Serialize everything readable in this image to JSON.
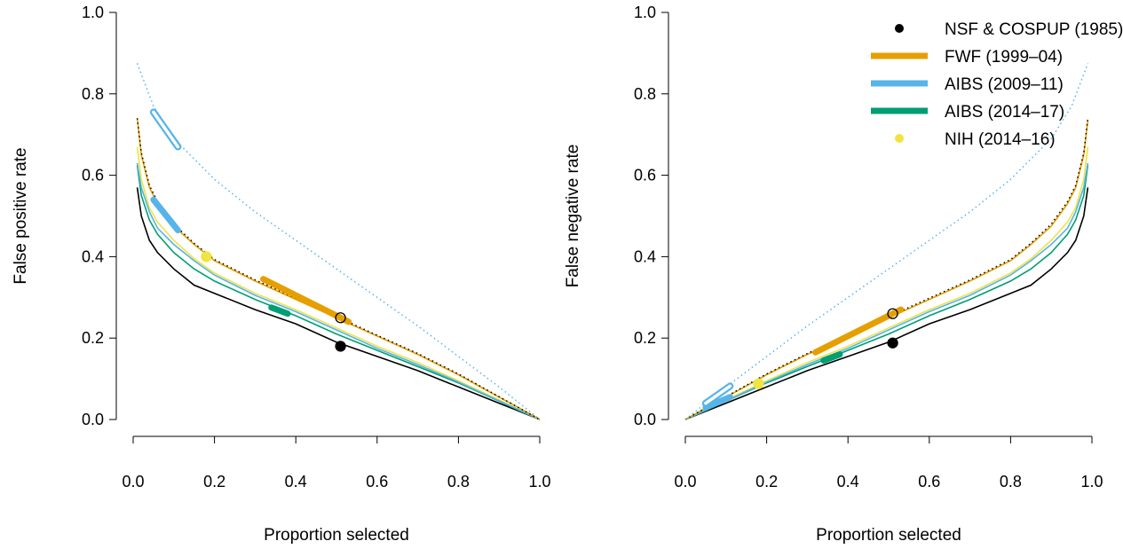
{
  "chart_data": [
    {
      "type": "line",
      "panel": "left",
      "xlabel": "Proportion selected",
      "ylabel": "False positive rate",
      "xlim": [
        0,
        1
      ],
      "ylim": [
        0,
        1
      ],
      "x_ticks": [
        "0.0",
        "0.2",
        "0.4",
        "0.6",
        "0.8",
        "1.0"
      ],
      "y_ticks": [
        "0.0",
        "0.2",
        "0.4",
        "0.6",
        "0.8",
        "1.0"
      ],
      "grid": false,
      "series": [
        {
          "name": "NSF & COSPUP (1985)",
          "color": "#000000",
          "x": [
            0.01,
            0.02,
            0.04,
            0.06,
            0.1,
            0.15,
            0.2,
            0.3,
            0.4,
            0.5,
            0.6,
            0.7,
            0.8,
            0.9,
            0.95,
            1.0
          ],
          "y": [
            0.57,
            0.5,
            0.44,
            0.41,
            0.37,
            0.33,
            0.31,
            0.27,
            0.235,
            0.19,
            0.155,
            0.12,
            0.08,
            0.04,
            0.02,
            0.0
          ]
        },
        {
          "name": "AIBS (2014–17)",
          "color": "#009E73",
          "x": [
            0.01,
            0.02,
            0.04,
            0.06,
            0.1,
            0.15,
            0.2,
            0.3,
            0.4,
            0.5,
            0.6,
            0.7,
            0.8,
            0.9,
            0.95,
            1.0
          ],
          "y": [
            0.625,
            0.55,
            0.49,
            0.455,
            0.41,
            0.37,
            0.34,
            0.295,
            0.255,
            0.21,
            0.17,
            0.13,
            0.09,
            0.045,
            0.022,
            0.0
          ]
        },
        {
          "name": "NIH (2014–16)",
          "color": "#F0E442",
          "x": [
            0.01,
            0.02,
            0.04,
            0.06,
            0.1,
            0.15,
            0.2,
            0.3,
            0.4,
            0.5,
            0.6,
            0.7,
            0.8,
            0.9,
            0.95,
            1.0
          ],
          "y": [
            0.67,
            0.59,
            0.52,
            0.485,
            0.44,
            0.395,
            0.36,
            0.31,
            0.27,
            0.225,
            0.18,
            0.14,
            0.095,
            0.048,
            0.024,
            0.0
          ]
        },
        {
          "name": "AIBS (2009–11)",
          "color": "#56B4E9",
          "x": [
            0.01,
            0.02,
            0.04,
            0.06,
            0.1,
            0.15,
            0.2,
            0.3,
            0.4,
            0.5,
            0.6,
            0.7,
            0.8,
            0.9,
            0.95,
            1.0
          ],
          "y": [
            0.63,
            0.57,
            0.51,
            0.47,
            0.43,
            0.39,
            0.355,
            0.305,
            0.265,
            0.22,
            0.175,
            0.135,
            0.092,
            0.046,
            0.023,
            0.0
          ]
        },
        {
          "name": "FWF (1999–04)",
          "color": "#E69F00",
          "x": [
            0.01,
            0.02,
            0.04,
            0.06,
            0.1,
            0.15,
            0.2,
            0.3,
            0.4,
            0.5,
            0.6,
            0.7,
            0.8,
            0.9,
            0.95,
            1.0
          ],
          "y": [
            0.74,
            0.65,
            0.57,
            0.53,
            0.475,
            0.43,
            0.39,
            0.34,
            0.295,
            0.25,
            0.205,
            0.16,
            0.11,
            0.055,
            0.028,
            0.0
          ]
        },
        {
          "name": "",
          "color": "#000000",
          "dash": "dotted",
          "x": [
            0.01,
            0.02,
            0.04,
            0.06,
            0.1,
            0.15,
            0.2,
            0.3,
            0.4,
            0.5,
            0.6,
            0.7,
            0.8,
            0.9,
            0.95,
            1.0
          ],
          "y": [
            0.74,
            0.655,
            0.575,
            0.535,
            0.48,
            0.433,
            0.393,
            0.343,
            0.298,
            0.253,
            0.207,
            0.162,
            0.112,
            0.056,
            0.028,
            0.0
          ]
        },
        {
          "name": "",
          "color": "#56B4E9",
          "dash": "dotted",
          "x": [
            0.01,
            0.05,
            0.1,
            0.2,
            0.3,
            0.4,
            0.5,
            0.6,
            0.7,
            0.8,
            0.9,
            0.95,
            1.0
          ],
          "y": [
            0.875,
            0.77,
            0.69,
            0.59,
            0.51,
            0.44,
            0.37,
            0.3,
            0.23,
            0.155,
            0.08,
            0.04,
            0.0
          ]
        }
      ],
      "thick_segments": [
        {
          "color": "#E69F00",
          "x": [
            0.32,
            0.53
          ],
          "y": [
            0.345,
            0.24
          ]
        },
        {
          "color": "#56B4E9",
          "x": [
            0.05,
            0.11
          ],
          "y": [
            0.54,
            0.465
          ]
        },
        {
          "color": "#009E73",
          "x": [
            0.34,
            0.38
          ],
          "y": [
            0.275,
            0.26
          ]
        }
      ],
      "outlined_segments": [
        {
          "color": "#56B4E9",
          "x": [
            0.05,
            0.11
          ],
          "y": [
            0.755,
            0.67
          ]
        }
      ],
      "points": [
        {
          "color": "#000000",
          "fill": true,
          "x": 0.51,
          "y": 0.18
        },
        {
          "color": "#000000",
          "fill": false,
          "x": 0.51,
          "y": 0.25
        },
        {
          "color": "#F0E442",
          "fill": true,
          "x": 0.18,
          "y": 0.4
        }
      ]
    },
    {
      "type": "line",
      "panel": "right",
      "xlabel": "Proportion selected",
      "ylabel": "False negative rate",
      "xlim": [
        0,
        1
      ],
      "ylim": [
        0,
        1
      ],
      "x_ticks": [
        "0.0",
        "0.2",
        "0.4",
        "0.6",
        "0.8",
        "1.0"
      ],
      "y_ticks": [
        "0.0",
        "0.2",
        "0.4",
        "0.6",
        "0.8",
        "1.0"
      ],
      "grid": false,
      "legend_position": "top-right",
      "legend": [
        {
          "label": "NSF & COSPUP (1985)",
          "color": "#000000",
          "kind": "point"
        },
        {
          "label": "FWF (1999–04)",
          "color": "#E69F00",
          "kind": "line"
        },
        {
          "label": "AIBS (2009–11)",
          "color": "#56B4E9",
          "kind": "line"
        },
        {
          "label": "AIBS (2014–17)",
          "color": "#009E73",
          "kind": "line"
        },
        {
          "label": "NIH (2014–16)",
          "color": "#F0E442",
          "kind": "point"
        }
      ],
      "series": [
        {
          "name": "NSF & COSPUP (1985)",
          "color": "#000000",
          "x": [
            0.0,
            0.05,
            0.1,
            0.2,
            0.3,
            0.4,
            0.5,
            0.6,
            0.7,
            0.8,
            0.85,
            0.9,
            0.94,
            0.96,
            0.98,
            0.99
          ],
          "y": [
            0.0,
            0.02,
            0.04,
            0.08,
            0.12,
            0.155,
            0.19,
            0.235,
            0.27,
            0.31,
            0.33,
            0.37,
            0.41,
            0.44,
            0.5,
            0.57
          ]
        },
        {
          "name": "AIBS (2014–17)",
          "color": "#009E73",
          "x": [
            0.0,
            0.05,
            0.1,
            0.2,
            0.3,
            0.4,
            0.5,
            0.6,
            0.7,
            0.8,
            0.85,
            0.9,
            0.94,
            0.96,
            0.98,
            0.99
          ],
          "y": [
            0.0,
            0.022,
            0.045,
            0.09,
            0.13,
            0.17,
            0.21,
            0.255,
            0.295,
            0.34,
            0.37,
            0.41,
            0.455,
            0.49,
            0.55,
            0.625
          ]
        },
        {
          "name": "NIH (2014–16)",
          "color": "#F0E442",
          "x": [
            0.0,
            0.05,
            0.1,
            0.2,
            0.3,
            0.4,
            0.5,
            0.6,
            0.7,
            0.8,
            0.85,
            0.9,
            0.94,
            0.96,
            0.98,
            0.99
          ],
          "y": [
            0.0,
            0.024,
            0.048,
            0.095,
            0.14,
            0.18,
            0.225,
            0.27,
            0.31,
            0.36,
            0.395,
            0.44,
            0.485,
            0.52,
            0.59,
            0.67
          ]
        },
        {
          "name": "AIBS (2009–11)",
          "color": "#56B4E9",
          "x": [
            0.0,
            0.05,
            0.1,
            0.2,
            0.3,
            0.4,
            0.5,
            0.6,
            0.7,
            0.8,
            0.85,
            0.9,
            0.94,
            0.96,
            0.98,
            0.99
          ],
          "y": [
            0.0,
            0.023,
            0.046,
            0.092,
            0.135,
            0.175,
            0.22,
            0.265,
            0.305,
            0.355,
            0.39,
            0.43,
            0.47,
            0.51,
            0.57,
            0.63
          ]
        },
        {
          "name": "FWF (1999–04)",
          "color": "#E69F00",
          "x": [
            0.0,
            0.05,
            0.1,
            0.2,
            0.3,
            0.4,
            0.5,
            0.6,
            0.7,
            0.8,
            0.85,
            0.9,
            0.94,
            0.96,
            0.98,
            0.99
          ],
          "y": [
            0.0,
            0.028,
            0.055,
            0.11,
            0.16,
            0.205,
            0.25,
            0.295,
            0.34,
            0.39,
            0.43,
            0.475,
            0.53,
            0.57,
            0.65,
            0.735
          ]
        },
        {
          "name": "",
          "color": "#000000",
          "dash": "dotted",
          "x": [
            0.0,
            0.05,
            0.1,
            0.2,
            0.3,
            0.4,
            0.5,
            0.6,
            0.7,
            0.8,
            0.85,
            0.9,
            0.94,
            0.96,
            0.98,
            0.99
          ],
          "y": [
            0.0,
            0.028,
            0.056,
            0.112,
            0.162,
            0.207,
            0.253,
            0.298,
            0.343,
            0.393,
            0.433,
            0.48,
            0.535,
            0.575,
            0.655,
            0.74
          ]
        },
        {
          "name": "",
          "color": "#56B4E9",
          "dash": "dotted",
          "x": [
            0.0,
            0.05,
            0.1,
            0.2,
            0.3,
            0.4,
            0.5,
            0.6,
            0.7,
            0.8,
            0.9,
            0.95,
            0.99
          ],
          "y": [
            0.0,
            0.04,
            0.08,
            0.155,
            0.23,
            0.3,
            0.37,
            0.44,
            0.51,
            0.59,
            0.69,
            0.77,
            0.875
          ]
        }
      ],
      "thick_segments": [
        {
          "color": "#E69F00",
          "x": [
            0.32,
            0.53
          ],
          "y": [
            0.165,
            0.27
          ]
        },
        {
          "color": "#56B4E9",
          "x": [
            0.05,
            0.11
          ],
          "y": [
            0.03,
            0.055
          ]
        },
        {
          "color": "#009E73",
          "x": [
            0.34,
            0.38
          ],
          "y": [
            0.145,
            0.16
          ]
        }
      ],
      "outlined_segments": [
        {
          "color": "#56B4E9",
          "x": [
            0.05,
            0.11
          ],
          "y": [
            0.04,
            0.082
          ]
        }
      ],
      "points": [
        {
          "color": "#000000",
          "fill": true,
          "x": 0.51,
          "y": 0.188
        },
        {
          "color": "#000000",
          "fill": false,
          "x": 0.51,
          "y": 0.26
        },
        {
          "color": "#F0E442",
          "fill": true,
          "x": 0.18,
          "y": 0.088
        }
      ]
    }
  ]
}
